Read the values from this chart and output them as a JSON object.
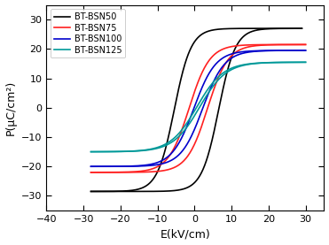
{
  "title": "",
  "xlabel": "E(kV/cm)",
  "ylabel": "P(μC/cm²)",
  "xlim": [
    -40,
    35
  ],
  "ylim": [
    -35,
    35
  ],
  "xticks": [
    -40,
    -30,
    -20,
    -10,
    0,
    10,
    20,
    30
  ],
  "yticks": [
    -30,
    -20,
    -10,
    0,
    10,
    20,
    30
  ],
  "legend_labels": [
    "BT-BSN50",
    "BT-BSN75",
    "BT-BSN100",
    "BT-BSN125"
  ],
  "colors": [
    "#000000",
    "#ff2020",
    "#0000cc",
    "#009999"
  ],
  "curves": [
    {
      "name": "BSN50",
      "Emax": 29,
      "Pmax": 27,
      "Emin": -28,
      "Pmin": -28.5,
      "Ec": 6.0,
      "Pr": 4.0,
      "steepness": 0.22
    },
    {
      "name": "BSN75",
      "Emax": 30,
      "Pmax": 21.5,
      "Emin": -28,
      "Pmin": -22,
      "Ec": 2.5,
      "Pr": 2.0,
      "steepness": 0.18
    },
    {
      "name": "BSN100",
      "Emax": 30,
      "Pmax": 19.5,
      "Emin": -28,
      "Pmin": -20,
      "Ec": 1.2,
      "Pr": 1.2,
      "steepness": 0.17
    },
    {
      "name": "BSN125",
      "Emax": 30,
      "Pmax": 15.5,
      "Emin": -28,
      "Pmin": -15,
      "Ec": 0.4,
      "Pr": 0.6,
      "steepness": 0.14
    }
  ]
}
